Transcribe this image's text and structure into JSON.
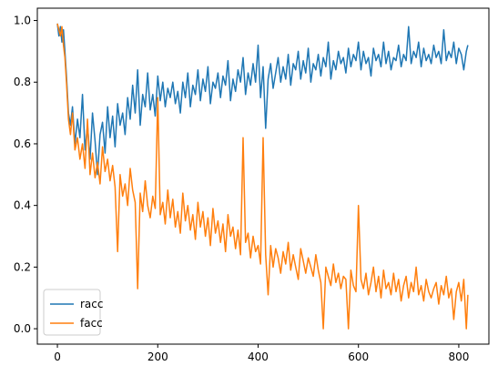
{
  "chart_data": {
    "type": "line",
    "title": "",
    "xlabel": "",
    "ylabel": "",
    "xlim": [
      -40,
      860
    ],
    "ylim": [
      -0.05,
      1.04
    ],
    "xticks": [
      0,
      200,
      400,
      600,
      800
    ],
    "yticks": [
      0.0,
      0.2,
      0.4,
      0.6,
      0.8,
      1.0
    ],
    "xtick_labels": [
      "0",
      "200",
      "400",
      "600",
      "800"
    ],
    "ytick_labels": [
      "0.0",
      "0.2",
      "0.4",
      "0.6",
      "0.8",
      "1.0"
    ],
    "grid": false,
    "legend_position": "lower-left",
    "series": [
      {
        "name": "racc",
        "color": "#1f77b4",
        "x": [
          0,
          3,
          6,
          9,
          12,
          15,
          18,
          22,
          26,
          30,
          35,
          40,
          45,
          50,
          55,
          60,
          65,
          70,
          75,
          80,
          85,
          90,
          95,
          100,
          105,
          110,
          115,
          120,
          125,
          130,
          135,
          140,
          145,
          150,
          155,
          160,
          165,
          170,
          175,
          180,
          185,
          190,
          195,
          200,
          205,
          210,
          215,
          220,
          225,
          230,
          235,
          240,
          245,
          250,
          255,
          260,
          265,
          270,
          275,
          280,
          285,
          290,
          295,
          300,
          305,
          310,
          315,
          320,
          325,
          330,
          335,
          340,
          345,
          350,
          355,
          360,
          365,
          370,
          375,
          380,
          385,
          390,
          395,
          400,
          405,
          410,
          415,
          420,
          425,
          430,
          435,
          440,
          445,
          450,
          455,
          460,
          465,
          470,
          475,
          480,
          485,
          490,
          495,
          500,
          505,
          510,
          515,
          520,
          525,
          530,
          535,
          540,
          545,
          550,
          555,
          560,
          565,
          570,
          575,
          580,
          585,
          590,
          595,
          600,
          605,
          610,
          615,
          620,
          625,
          630,
          635,
          640,
          645,
          650,
          655,
          660,
          665,
          670,
          675,
          680,
          685,
          690,
          695,
          700,
          705,
          710,
          715,
          720,
          725,
          730,
          735,
          740,
          745,
          750,
          755,
          760,
          765,
          770,
          775,
          780,
          785,
          790,
          795,
          800,
          805,
          810,
          815,
          818
        ],
        "y": [
          0.99,
          0.95,
          0.98,
          0.93,
          0.97,
          0.9,
          0.82,
          0.7,
          0.66,
          0.72,
          0.6,
          0.68,
          0.62,
          0.76,
          0.58,
          0.66,
          0.55,
          0.7,
          0.61,
          0.5,
          0.63,
          0.67,
          0.57,
          0.72,
          0.62,
          0.69,
          0.59,
          0.73,
          0.66,
          0.7,
          0.63,
          0.75,
          0.68,
          0.79,
          0.7,
          0.84,
          0.66,
          0.76,
          0.72,
          0.83,
          0.71,
          0.76,
          0.69,
          0.82,
          0.74,
          0.8,
          0.72,
          0.78,
          0.75,
          0.8,
          0.73,
          0.77,
          0.7,
          0.8,
          0.75,
          0.83,
          0.72,
          0.79,
          0.76,
          0.84,
          0.74,
          0.81,
          0.77,
          0.85,
          0.73,
          0.8,
          0.78,
          0.83,
          0.75,
          0.82,
          0.79,
          0.87,
          0.74,
          0.81,
          0.77,
          0.84,
          0.8,
          0.88,
          0.76,
          0.83,
          0.79,
          0.86,
          0.8,
          0.92,
          0.75,
          0.85,
          0.65,
          0.81,
          0.86,
          0.78,
          0.83,
          0.88,
          0.8,
          0.85,
          0.81,
          0.89,
          0.79,
          0.86,
          0.84,
          0.9,
          0.81,
          0.87,
          0.83,
          0.91,
          0.8,
          0.86,
          0.84,
          0.89,
          0.82,
          0.88,
          0.85,
          0.93,
          0.81,
          0.87,
          0.84,
          0.9,
          0.86,
          0.88,
          0.83,
          0.91,
          0.85,
          0.89,
          0.87,
          0.93,
          0.84,
          0.9,
          0.86,
          0.88,
          0.82,
          0.91,
          0.87,
          0.89,
          0.85,
          0.93,
          0.86,
          0.9,
          0.84,
          0.88,
          0.87,
          0.92,
          0.85,
          0.89,
          0.87,
          0.98,
          0.86,
          0.9,
          0.88,
          0.93,
          0.85,
          0.91,
          0.87,
          0.89,
          0.86,
          0.92,
          0.88,
          0.9,
          0.86,
          0.97,
          0.87,
          0.9,
          0.88,
          0.93,
          0.86,
          0.91,
          0.89,
          0.84,
          0.9,
          0.92
        ]
      },
      {
        "name": "facc",
        "color": "#ff7f0e",
        "x": [
          0,
          3,
          6,
          9,
          12,
          15,
          18,
          22,
          26,
          30,
          35,
          40,
          45,
          50,
          55,
          60,
          65,
          70,
          75,
          80,
          85,
          90,
          95,
          100,
          105,
          110,
          115,
          120,
          125,
          130,
          135,
          140,
          145,
          150,
          155,
          160,
          165,
          170,
          175,
          180,
          185,
          190,
          195,
          200,
          205,
          210,
          215,
          220,
          225,
          230,
          235,
          240,
          245,
          250,
          255,
          260,
          265,
          270,
          275,
          280,
          285,
          290,
          295,
          300,
          305,
          310,
          315,
          320,
          325,
          330,
          335,
          340,
          345,
          350,
          355,
          360,
          365,
          370,
          375,
          380,
          385,
          390,
          395,
          400,
          405,
          410,
          415,
          420,
          425,
          430,
          435,
          440,
          445,
          450,
          455,
          460,
          465,
          470,
          475,
          480,
          485,
          490,
          495,
          500,
          505,
          510,
          515,
          520,
          525,
          530,
          535,
          540,
          545,
          550,
          555,
          560,
          565,
          570,
          575,
          580,
          585,
          590,
          595,
          600,
          605,
          610,
          615,
          620,
          625,
          630,
          635,
          640,
          645,
          650,
          655,
          660,
          665,
          670,
          675,
          680,
          685,
          690,
          695,
          700,
          705,
          710,
          715,
          720,
          725,
          730,
          735,
          740,
          745,
          750,
          755,
          760,
          765,
          770,
          775,
          780,
          785,
          790,
          795,
          800,
          805,
          810,
          815,
          818
        ],
        "y": [
          0.99,
          0.97,
          0.95,
          0.98,
          0.92,
          0.88,
          0.8,
          0.68,
          0.63,
          0.7,
          0.58,
          0.62,
          0.55,
          0.6,
          0.52,
          0.68,
          0.5,
          0.57,
          0.49,
          0.54,
          0.47,
          0.59,
          0.51,
          0.55,
          0.48,
          0.53,
          0.46,
          0.25,
          0.5,
          0.43,
          0.47,
          0.4,
          0.52,
          0.45,
          0.41,
          0.13,
          0.44,
          0.38,
          0.48,
          0.4,
          0.36,
          0.43,
          0.39,
          0.75,
          0.37,
          0.41,
          0.34,
          0.45,
          0.36,
          0.42,
          0.33,
          0.38,
          0.31,
          0.44,
          0.35,
          0.4,
          0.32,
          0.37,
          0.29,
          0.41,
          0.33,
          0.38,
          0.3,
          0.36,
          0.27,
          0.39,
          0.31,
          0.35,
          0.28,
          0.34,
          0.25,
          0.37,
          0.3,
          0.33,
          0.26,
          0.32,
          0.24,
          0.62,
          0.28,
          0.31,
          0.23,
          0.3,
          0.25,
          0.27,
          0.21,
          0.62,
          0.24,
          0.11,
          0.27,
          0.2,
          0.26,
          0.23,
          0.18,
          0.25,
          0.21,
          0.28,
          0.19,
          0.24,
          0.2,
          0.16,
          0.26,
          0.22,
          0.18,
          0.23,
          0.2,
          0.17,
          0.24,
          0.19,
          0.15,
          0.0,
          0.2,
          0.17,
          0.14,
          0.21,
          0.15,
          0.18,
          0.13,
          0.17,
          0.16,
          0.0,
          0.19,
          0.14,
          0.12,
          0.4,
          0.16,
          0.13,
          0.18,
          0.11,
          0.15,
          0.2,
          0.12,
          0.17,
          0.1,
          0.19,
          0.13,
          0.15,
          0.11,
          0.18,
          0.12,
          0.16,
          0.09,
          0.14,
          0.17,
          0.1,
          0.15,
          0.12,
          0.2,
          0.11,
          0.14,
          0.09,
          0.16,
          0.12,
          0.1,
          0.13,
          0.15,
          0.08,
          0.14,
          0.11,
          0.17,
          0.1,
          0.13,
          0.03,
          0.12,
          0.15,
          0.09,
          0.16,
          0.0,
          0.11
        ]
      }
    ]
  }
}
